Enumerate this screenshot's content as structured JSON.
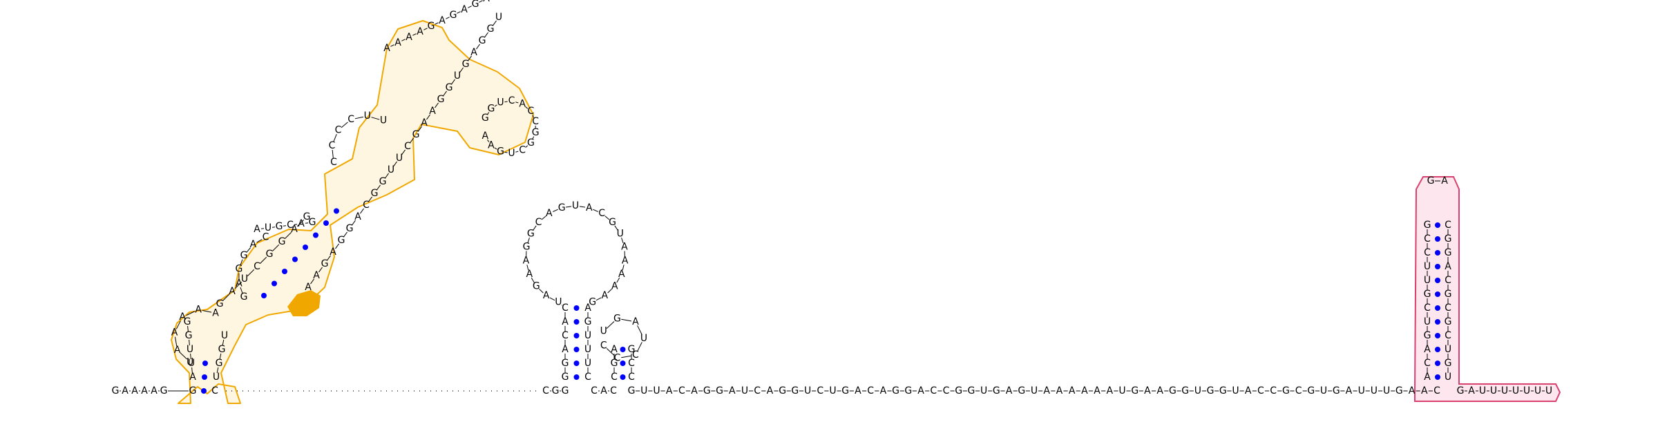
{
  "diagram": {
    "type": "rna-secondary-structure",
    "colors": {
      "base_pair_dot": "#0000ff",
      "highlight_orange": "#f0a800",
      "highlight_orange_fill": "#fff6e2",
      "highlight_pink": "#d9406e",
      "highlight_pink_fill": "#fde6ee"
    },
    "segments": {
      "five_prime": "GAAAAG",
      "orange_left_base": "G",
      "orange_right_base": "C",
      "orange_left_helix_1": "AUUGG",
      "orange_left_helix_2": "GAUCGGAG",
      "orange_stem_right": "UGGU",
      "orange_loop_1": "UAAAAA",
      "orange_loop_2_left": "GAGGAC",
      "orange_loop_2_top": "AUGCAG",
      "orange_loop_3": "CCCCUU",
      "orange_loop_4": "AAAAGAGAGAA",
      "orange_hairpin": "GGUCACCGGCUGAA",
      "orange_right_helix": "AAGAGGACGGUUCGAAGGUGAGGU",
      "hairpin_left_stem": "GGACAC",
      "hairpin_right_stem": "CUUUGA",
      "hairpin_loop": "UAGAAGGCAGUACGUAAAAAG",
      "small_left_stem": "CGA",
      "small_loop": "UGAUCCC",
      "small_right_stem": "CCG",
      "bridge": "CGG",
      "after_small": "CAC",
      "long_tail": "GUUACAGGAUCAGGUCUGACAGGACCGGUGAGUAAAAAAUGAAGGUGGUACCGCGUGAUUUGAAC",
      "pink_left_stem": "ACAGUCGUUCCG",
      "pink_loop": "GA",
      "pink_right_stem": "UGUCGCGCAGGC",
      "three_prime": "GAUUUUUUU"
    }
  }
}
